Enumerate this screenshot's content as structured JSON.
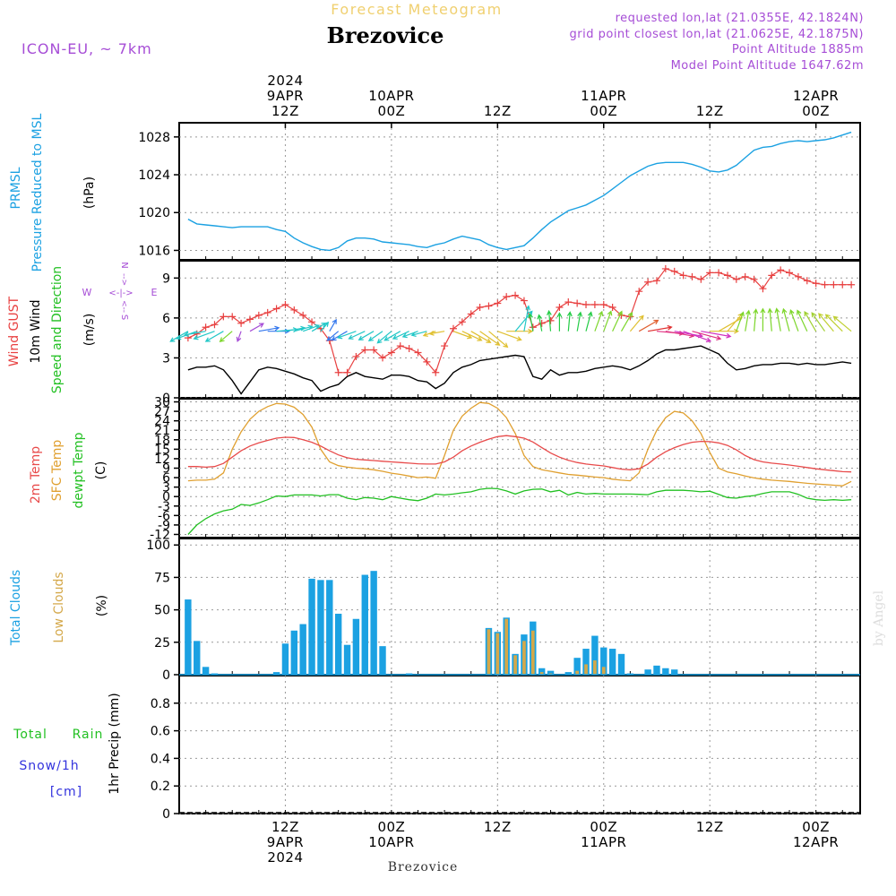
{
  "header": {
    "title_top": "Forecast Meteogram",
    "station": "Brezovice",
    "model": "ICON-EU, ~ 7km",
    "requested": "requested lon,lat (21.0355E, 42.1824N)",
    "grid": "grid point closest lon,lat (21.0625E, 42.1875N)",
    "point_alt": "Point Altitude 1885m",
    "model_alt": "Model Point Altitude 1647.62m",
    "watermark": "by Angel",
    "footer_station": "Brezovice"
  },
  "colors": {
    "prmsl": "#1ba1e2",
    "gust": "#e84040",
    "wind": "#000000",
    "temp2m": "#e84a4a",
    "sfc": "#e0a030",
    "dewpt": "#22c022",
    "total_clouds": "#1ba1e2",
    "low_clouds": "#d4a84a",
    "rain": "#22c022",
    "snow": "#3333dd",
    "purple": "#a64dd6"
  },
  "time_axis": {
    "top_ticks": [
      {
        "h": 12,
        "lines": [
          "2024",
          "9APR",
          "12Z"
        ]
      },
      {
        "h": 24,
        "lines": [
          "10APR",
          "00Z"
        ]
      },
      {
        "h": 36,
        "lines": [
          "12Z"
        ]
      },
      {
        "h": 48,
        "lines": [
          "11APR",
          "00Z"
        ]
      },
      {
        "h": 60,
        "lines": [
          "12Z"
        ]
      },
      {
        "h": 72,
        "lines": [
          "12APR",
          "00Z"
        ]
      }
    ],
    "bottom_ticks": [
      {
        "h": 12,
        "lines": [
          "12Z",
          "9APR",
          "2024"
        ]
      },
      {
        "h": 24,
        "lines": [
          "00Z",
          "10APR"
        ]
      },
      {
        "h": 36,
        "lines": [
          "12Z"
        ]
      },
      {
        "h": 48,
        "lines": [
          "00Z",
          "11APR"
        ]
      },
      {
        "h": 60,
        "lines": [
          "12Z"
        ]
      },
      {
        "h": 72,
        "lines": [
          "00Z",
          "12APR"
        ]
      }
    ]
  },
  "chart_data": [
    {
      "type": "line",
      "name": "prmsl",
      "label_left": "PRMSL",
      "label_left2": "Pressure Reduced to MSL",
      "unit": "(hPa)",
      "ylim": [
        1015,
        1029.5
      ],
      "yticks": [
        1016,
        1020,
        1024,
        1028
      ],
      "x": [
        1,
        2,
        3,
        4,
        5,
        6,
        7,
        8,
        9,
        10,
        11,
        12,
        13,
        14,
        15,
        16,
        17,
        18,
        19,
        20,
        21,
        22,
        23,
        24,
        25,
        26,
        27,
        28,
        29,
        30,
        31,
        32,
        33,
        34,
        35,
        36,
        37,
        38,
        39,
        40,
        41,
        42,
        43,
        44,
        45,
        46,
        47,
        48,
        49,
        50,
        51,
        52,
        53,
        54,
        55,
        56,
        57,
        58,
        59,
        60,
        61,
        62,
        63,
        64,
        65,
        66,
        67,
        68,
        69,
        70,
        71,
        72,
        73,
        74,
        75,
        76
      ],
      "y": [
        1019.3,
        1018.8,
        1018.7,
        1018.6,
        1018.5,
        1018.4,
        1018.5,
        1018.5,
        1018.5,
        1018.5,
        1018.2,
        1018.0,
        1017.3,
        1016.8,
        1016.4,
        1016.1,
        1016.0,
        1016.3,
        1017.0,
        1017.3,
        1017.3,
        1017.2,
        1016.9,
        1016.8,
        1016.7,
        1016.6,
        1016.4,
        1016.3,
        1016.6,
        1016.8,
        1017.2,
        1017.5,
        1017.3,
        1017.1,
        1016.6,
        1016.3,
        1016.1,
        1016.3,
        1016.5,
        1017.3,
        1018.2,
        1019.0,
        1019.6,
        1020.2,
        1020.5,
        1020.8,
        1021.3,
        1021.8,
        1022.5,
        1023.2,
        1023.9,
        1024.4,
        1024.9,
        1025.2,
        1025.3,
        1025.3,
        1025.3,
        1025.1,
        1024.8,
        1024.4,
        1024.3,
        1024.5,
        1025.0,
        1025.8,
        1026.6,
        1026.9,
        1027.0,
        1027.3,
        1027.5,
        1027.6,
        1027.5,
        1027.6,
        1027.7,
        1027.9,
        1028.2,
        1028.5
      ]
    },
    {
      "type": "line",
      "name": "wind",
      "label_a": "Wind GUST",
      "label_b": "10m Wind",
      "label_c": "Speed and Direction",
      "unit": "(m/s)",
      "compass": {
        "n": "N",
        "s": "S",
        "w": "W",
        "e": "E",
        "arrow": "<-|->",
        "varrow_top": "-->",
        "varrow_bot": "<--"
      },
      "ylim": [
        0,
        10.3
      ],
      "yticks": [
        0,
        3,
        6,
        9
      ],
      "x": [
        1,
        2,
        3,
        4,
        5,
        6,
        7,
        8,
        9,
        10,
        11,
        12,
        13,
        14,
        15,
        16,
        17,
        18,
        19,
        20,
        21,
        22,
        23,
        24,
        25,
        26,
        27,
        28,
        29,
        30,
        31,
        32,
        33,
        34,
        35,
        36,
        37,
        38,
        39,
        40,
        41,
        42,
        43,
        44,
        45,
        46,
        47,
        48,
        49,
        50,
        51,
        52,
        53,
        54,
        55,
        56,
        57,
        58,
        59,
        60,
        61,
        62,
        63,
        64,
        65,
        66,
        67,
        68,
        69,
        70,
        71,
        72,
        73,
        74,
        75,
        76
      ],
      "gust": [
        4.5,
        4.8,
        5.3,
        5.5,
        6.1,
        6.1,
        5.6,
        5.9,
        6.2,
        6.4,
        6.7,
        7.0,
        6.6,
        6.2,
        5.7,
        5.2,
        4.3,
        1.9,
        1.9,
        3.1,
        3.6,
        3.6,
        3.0,
        3.4,
        3.9,
        3.7,
        3.4,
        2.7,
        1.9,
        3.9,
        5.2,
        5.7,
        6.3,
        6.8,
        6.9,
        7.1,
        7.6,
        7.7,
        7.3,
        5.3,
        5.6,
        5.8,
        6.8,
        7.2,
        7.1,
        7.0,
        7.0,
        7.0,
        6.8,
        6.2,
        6.1,
        8.0,
        8.7,
        8.8,
        9.7,
        9.5,
        9.2,
        9.1,
        8.9,
        9.4,
        9.4,
        9.2,
        8.9,
        9.1,
        8.9,
        8.2,
        9.2,
        9.6,
        9.4,
        9.1,
        8.8,
        8.6,
        8.5,
        8.5,
        8.5,
        8.5
      ],
      "speed": [
        2.1,
        2.3,
        2.3,
        2.4,
        2.1,
        1.3,
        0.3,
        1.2,
        2.1,
        2.3,
        2.2,
        2.0,
        1.8,
        1.5,
        1.3,
        0.5,
        0.8,
        1.0,
        1.6,
        1.9,
        1.6,
        1.5,
        1.4,
        1.7,
        1.7,
        1.6,
        1.3,
        1.2,
        0.7,
        1.1,
        1.9,
        2.3,
        2.5,
        2.8,
        2.9,
        3.0,
        3.1,
        3.2,
        3.1,
        1.6,
        1.4,
        2.1,
        1.7,
        1.9,
        1.9,
        2.0,
        2.2,
        2.3,
        2.4,
        2.3,
        2.1,
        2.4,
        2.8,
        3.3,
        3.6,
        3.6,
        3.7,
        3.8,
        3.9,
        3.6,
        3.3,
        2.6,
        2.1,
        2.2,
        2.4,
        2.5,
        2.5,
        2.6,
        2.6,
        2.5,
        2.6,
        2.5,
        2.5,
        2.6,
        2.7,
        2.6
      ],
      "arrows_x": [
        1,
        2,
        3,
        4,
        5,
        6,
        7,
        8,
        9,
        10,
        11,
        12,
        13,
        14,
        15,
        16,
        17,
        18,
        19,
        20,
        21,
        22,
        23,
        24,
        25,
        26,
        27,
        28,
        29,
        30,
        31,
        32,
        33,
        34,
        35,
        36,
        37,
        38,
        39,
        40,
        41,
        42,
        43,
        44,
        45,
        46,
        47,
        48,
        49,
        50,
        51,
        52,
        53,
        54,
        55,
        56,
        57,
        58,
        59,
        60,
        61,
        62,
        63,
        64,
        65,
        66,
        67,
        68,
        69,
        70,
        71,
        72,
        73,
        74,
        75,
        76
      ],
      "arrows_deg": [
        240,
        250,
        260,
        250,
        240,
        230,
        200,
        60,
        80,
        90,
        85,
        80,
        75,
        70,
        60,
        40,
        30,
        230,
        240,
        250,
        245,
        240,
        235,
        230,
        240,
        245,
        250,
        255,
        250,
        260,
        110,
        115,
        120,
        125,
        130,
        110,
        90,
        40,
        10,
        350,
        350,
        355,
        0,
        5,
        10,
        15,
        20,
        20,
        25,
        30,
        40,
        60,
        80,
        95,
        100,
        100,
        110,
        105,
        100,
        90,
        60,
        40,
        20,
        10,
        5,
        0,
        355,
        350,
        345,
        340,
        335,
        330,
        325,
        320,
        315,
        310
      ],
      "arrows_colors": [
        "#22c7c7",
        "#22c7c7",
        "#22c7c7",
        "#22c7c7",
        "#22c7c7",
        "#7cd62a",
        "#a64dd6",
        "#a64dd6",
        "#3377ee",
        "#3377ee",
        "#22c7c7",
        "#22c7c7",
        "#22c7c7",
        "#22c7c7",
        "#22c7c7",
        "#22c7c7",
        "#3377ee",
        "#3377ee",
        "#3377ee",
        "#22c7c7",
        "#22c7c7",
        "#22c7c7",
        "#22c7c7",
        "#22c7c7",
        "#22c7c7",
        "#22c7c7",
        "#22c7c7",
        "#22c7c7",
        "#e0c030",
        "#e0c030",
        "#e0c030",
        "#e0c030",
        "#e0c030",
        "#e0c030",
        "#e0c030",
        "#e0c030",
        "#e0c030",
        "#22c7c7",
        "#22c7c7",
        "#22cc44",
        "#22cc44",
        "#22cc44",
        "#22cc44",
        "#22cc44",
        "#22cc44",
        "#22cc44",
        "#7cd62a",
        "#7cd62a",
        "#7cd62a",
        "#7cd62a",
        "#e0c030",
        "#e06030",
        "#e03030",
        "#e03080",
        "#e03080",
        "#d030c0",
        "#d030c0",
        "#e03080",
        "#d030c0",
        "#e0c030",
        "#e0c030",
        "#e0c030",
        "#7cd62a",
        "#7cd62a",
        "#7cd62a",
        "#7cd62a",
        "#7cd62a",
        "#7cd62a",
        "#7cd62a",
        "#7cd62a",
        "#7cd62a",
        "#a0d030",
        "#a0d030",
        "#c0d030",
        "#c0d030",
        "#c0d030"
      ]
    },
    {
      "type": "line",
      "name": "temperature",
      "label_a": "2m Temp",
      "label_b": "SFC Temp",
      "label_c": "dewpt Temp",
      "unit": "(C)",
      "ylim": [
        -13,
        31
      ],
      "yticks": [
        -12,
        -9,
        -6,
        -3,
        0,
        3,
        6,
        9,
        12,
        15,
        18,
        21,
        24,
        27,
        30
      ],
      "ytick_labels": [
        "-12",
        "-9",
        "-6",
        "-3",
        "0",
        "3",
        "6",
        "9",
        "12",
        "15",
        "18",
        "21",
        "24",
        "27",
        "30"
      ],
      "x": [
        1,
        2,
        3,
        4,
        5,
        6,
        7,
        8,
        9,
        10,
        11,
        12,
        13,
        14,
        15,
        16,
        17,
        18,
        19,
        20,
        21,
        22,
        23,
        24,
        25,
        26,
        27,
        28,
        29,
        30,
        31,
        32,
        33,
        34,
        35,
        36,
        37,
        38,
        39,
        40,
        41,
        42,
        43,
        44,
        45,
        46,
        47,
        48,
        49,
        50,
        51,
        52,
        53,
        54,
        55,
        56,
        57,
        58,
        59,
        60,
        61,
        62,
        63,
        64,
        65,
        66,
        67,
        68,
        69,
        70,
        71,
        72,
        73,
        74,
        75,
        76
      ],
      "t2m": [
        9.5,
        9.5,
        9.3,
        9.5,
        10.5,
        12.5,
        14.5,
        16.0,
        17.0,
        17.8,
        18.5,
        18.8,
        18.7,
        18.0,
        17.2,
        16.0,
        14.5,
        13.2,
        12.3,
        11.8,
        11.6,
        11.4,
        11.2,
        11.0,
        10.8,
        10.6,
        10.4,
        10.3,
        10.3,
        11.0,
        12.5,
        14.5,
        16.0,
        17.2,
        18.2,
        19.0,
        19.3,
        19.0,
        18.5,
        17.3,
        15.5,
        13.8,
        12.5,
        11.5,
        10.8,
        10.3,
        10.0,
        9.7,
        9.2,
        8.7,
        8.5,
        8.8,
        10.3,
        12.5,
        14.2,
        15.5,
        16.5,
        17.2,
        17.5,
        17.4,
        17.0,
        16.2,
        14.8,
        13.0,
        11.7,
        11.0,
        10.6,
        10.3,
        10.0,
        9.6,
        9.2,
        8.8,
        8.5,
        8.2,
        7.9,
        7.8
      ],
      "sfc": [
        5.0,
        5.2,
        5.2,
        5.5,
        7.5,
        15.0,
        20.5,
        24.5,
        27.0,
        28.5,
        29.5,
        29.3,
        28.3,
        26.0,
        22.0,
        15.0,
        11.0,
        9.8,
        9.3,
        9.0,
        8.8,
        8.5,
        8.0,
        7.4,
        7.0,
        6.5,
        6.0,
        6.2,
        5.8,
        13.0,
        21.0,
        25.5,
        28.0,
        29.8,
        29.5,
        28.0,
        25.0,
        20.0,
        13.0,
        9.5,
        8.5,
        8.0,
        7.5,
        7.0,
        6.8,
        6.5,
        6.2,
        6.0,
        5.5,
        5.2,
        5.0,
        7.5,
        15.0,
        21.0,
        25.0,
        27.0,
        26.5,
        24.0,
        20.0,
        14.0,
        9.0,
        7.8,
        7.2,
        6.5,
        5.9,
        5.5,
        5.2,
        5.0,
        4.8,
        4.5,
        4.2,
        4.0,
        3.8,
        3.6,
        3.4,
        4.8
      ],
      "dewpt": [
        -12.0,
        -9.0,
        -7.0,
        -5.5,
        -4.5,
        -4.0,
        -2.5,
        -2.8,
        -2.0,
        -1.0,
        0.2,
        0.0,
        0.5,
        0.5,
        0.5,
        0.2,
        0.6,
        0.6,
        -0.5,
        -1.0,
        -0.3,
        -0.5,
        -1.0,
        0.0,
        -0.5,
        -1.0,
        -1.3,
        -0.5,
        0.8,
        0.5,
        0.8,
        1.2,
        1.5,
        2.3,
        2.6,
        2.5,
        1.8,
        0.8,
        1.8,
        2.3,
        2.4,
        1.5,
        2.0,
        0.5,
        1.3,
        0.8,
        1.0,
        0.8,
        0.8,
        0.8,
        0.8,
        0.7,
        0.6,
        1.5,
        2.0,
        2.0,
        2.0,
        1.8,
        1.5,
        1.7,
        0.7,
        -0.3,
        -0.5,
        0.0,
        0.3,
        1.0,
        1.5,
        1.5,
        1.5,
        0.7,
        -0.5,
        -1.0,
        -1.2,
        -1.0,
        -1.2,
        -1.0
      ]
    },
    {
      "type": "bar",
      "name": "clouds",
      "label_a": "Total Clouds",
      "label_b": "Low Clouds",
      "unit": "(%)",
      "ylim": [
        0,
        105
      ],
      "yticks": [
        0,
        25,
        50,
        75,
        100
      ],
      "x": [
        1,
        2,
        3,
        4,
        5,
        6,
        7,
        8,
        9,
        10,
        11,
        12,
        13,
        14,
        15,
        16,
        17,
        18,
        19,
        20,
        21,
        22,
        23,
        24,
        25,
        26,
        27,
        28,
        29,
        30,
        31,
        32,
        33,
        34,
        35,
        36,
        37,
        38,
        39,
        40,
        41,
        42,
        43,
        44,
        45,
        46,
        47,
        48,
        49,
        50,
        51,
        52,
        53,
        54,
        55,
        56,
        57,
        58,
        59,
        60,
        61,
        62,
        63,
        64,
        65,
        66,
        67,
        68,
        69,
        70,
        71,
        72,
        73,
        74,
        75,
        76
      ],
      "total": [
        58,
        26,
        6,
        1,
        0,
        0,
        0,
        0,
        0,
        0,
        2,
        24,
        34,
        39,
        74,
        73,
        73,
        47,
        23,
        43,
        77,
        80,
        22,
        0,
        0,
        1,
        0,
        0,
        0,
        0,
        0,
        0,
        0,
        0,
        36,
        33,
        44,
        16,
        31,
        41,
        5,
        3,
        0,
        2,
        13,
        20,
        30,
        21,
        20,
        16,
        1,
        0,
        4,
        7,
        5,
        4,
        0,
        0,
        0,
        0,
        0,
        0,
        0,
        0,
        0,
        0,
        0,
        0,
        0,
        0,
        0,
        0,
        0,
        0,
        0,
        0
      ],
      "low": [
        0,
        0,
        0,
        0,
        0,
        0,
        0,
        0,
        0,
        0,
        0,
        0,
        0,
        0,
        0,
        0,
        0,
        0,
        0,
        0,
        0,
        0,
        0,
        0,
        0,
        0,
        0,
        0,
        0,
        0,
        0,
        0,
        0,
        0,
        35,
        32,
        43,
        15,
        26,
        34,
        2,
        1,
        0,
        0,
        3,
        8,
        11,
        6,
        0,
        0,
        0,
        0,
        0,
        0,
        0,
        0,
        0,
        0,
        0,
        0,
        0,
        0,
        0,
        0,
        0,
        0,
        0,
        0,
        0,
        0,
        0,
        0,
        0,
        0,
        0,
        0
      ]
    },
    {
      "type": "bar",
      "name": "precip",
      "label_a": "Total",
      "label_b": "Rain",
      "label_c": "Snow/1h",
      "label_d": "[cm]",
      "unit": "1hr Precip (mm)",
      "ylim": [
        0,
        1.0
      ],
      "yticks": [
        0,
        0.2,
        0.4,
        0.6,
        0.8
      ],
      "ytick_labels": [
        "0",
        "0.2",
        "0.4",
        "0.6",
        "0.8"
      ],
      "x": [],
      "values": []
    }
  ]
}
